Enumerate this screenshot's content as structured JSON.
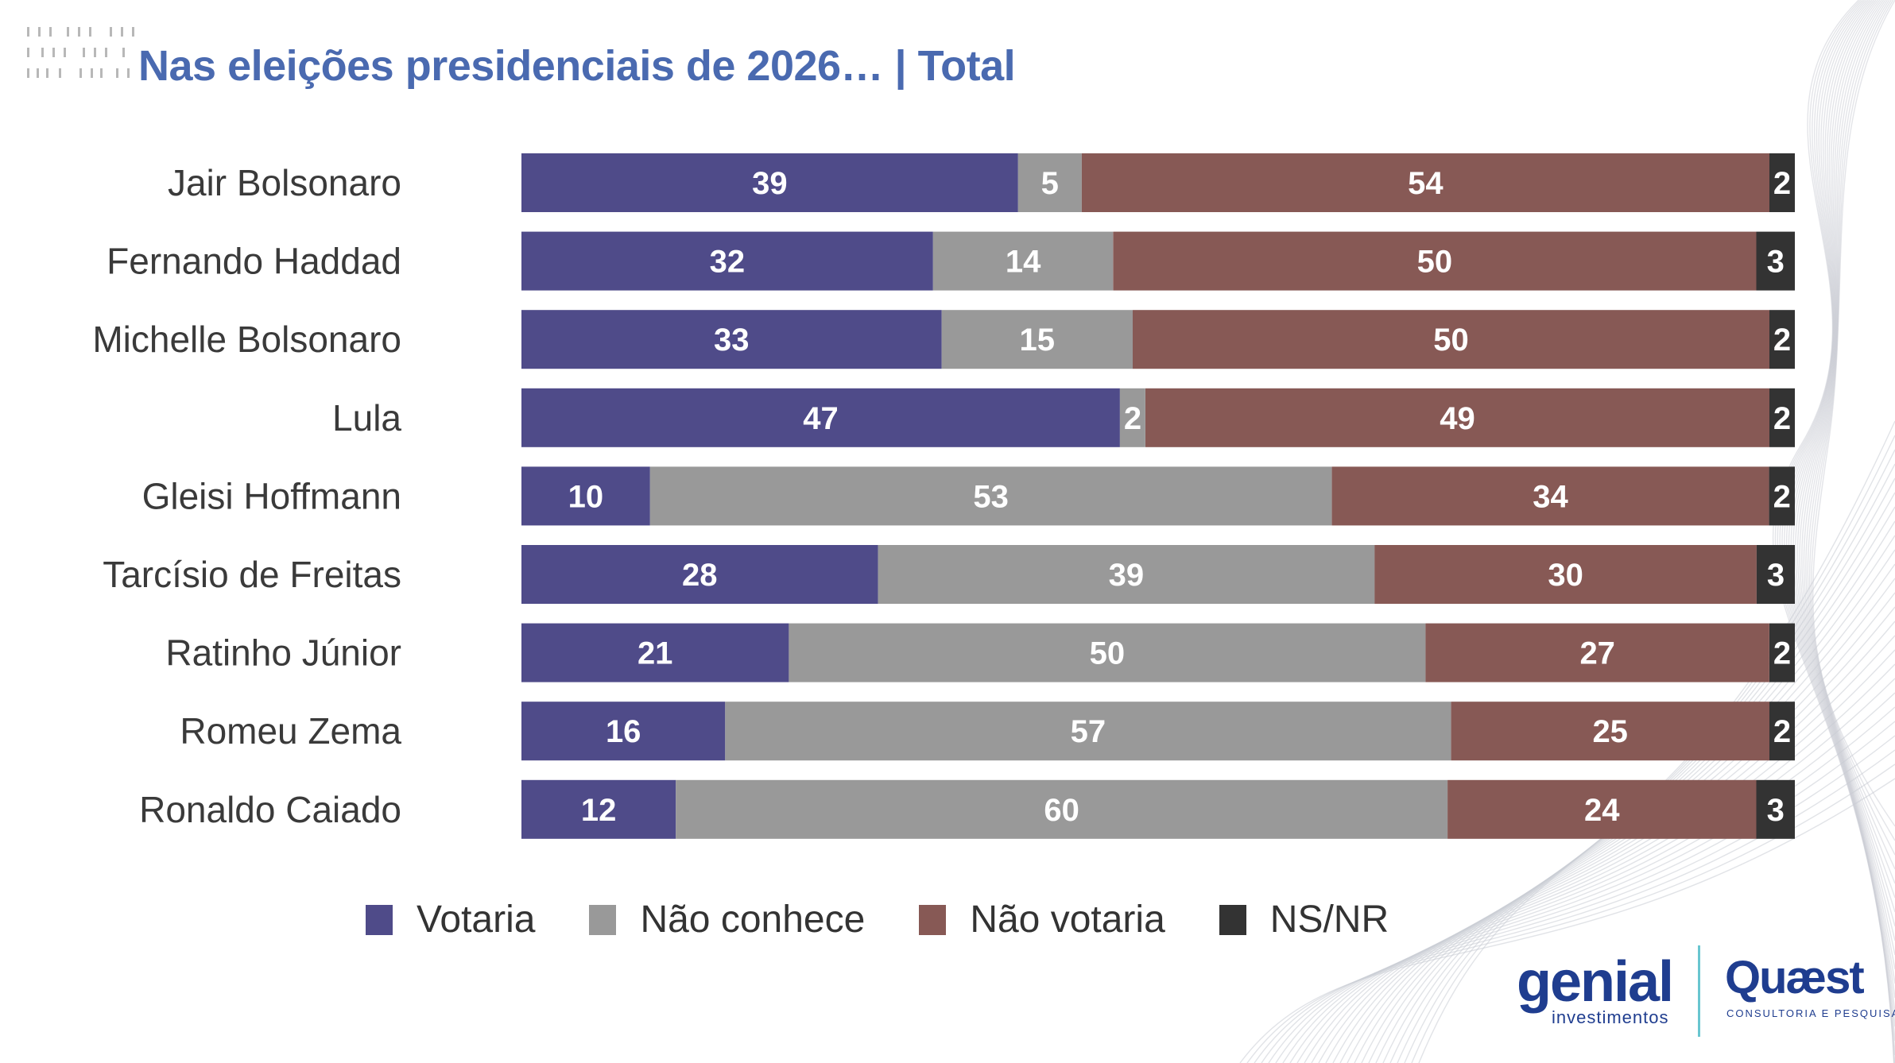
{
  "header": {
    "title": "Nas eleições presidenciais de 2026… | Total"
  },
  "colors": {
    "votaria": "#4f4b89",
    "nao_conhece": "#999999",
    "nao_votaria": "#875955",
    "ns_nr": "#333333",
    "title": "#4a6ab0"
  },
  "chart_data": {
    "type": "bar",
    "orientation": "horizontal",
    "stacked": true,
    "categories": [
      "Jair Bolsonaro",
      "Fernando Haddad",
      "Michelle Bolsonaro",
      "Lula",
      "Gleisi Hoffmann",
      "Tarcísio de Freitas",
      "Ratinho Júnior",
      "Romeu Zema",
      "Ronaldo Caiado"
    ],
    "series": [
      {
        "name": "Votaria",
        "color": "#4f4b89",
        "values": [
          39,
          32,
          33,
          47,
          10,
          28,
          21,
          16,
          12
        ]
      },
      {
        "name": "Não conhece",
        "color": "#999999",
        "values": [
          5,
          14,
          15,
          2,
          53,
          39,
          50,
          57,
          60
        ]
      },
      {
        "name": "Não votaria",
        "color": "#875955",
        "values": [
          54,
          50,
          50,
          49,
          34,
          30,
          27,
          25,
          24
        ]
      },
      {
        "name": "NS/NR",
        "color": "#333333",
        "values": [
          2,
          3,
          2,
          2,
          2,
          3,
          2,
          2,
          3
        ]
      }
    ],
    "legend_position": "bottom",
    "grid": false
  },
  "logos": {
    "genial": "genial",
    "genial_sub": "investimentos",
    "quaest": "Quæst",
    "quaest_sub": "CONSULTORIA E PESQUISA"
  }
}
